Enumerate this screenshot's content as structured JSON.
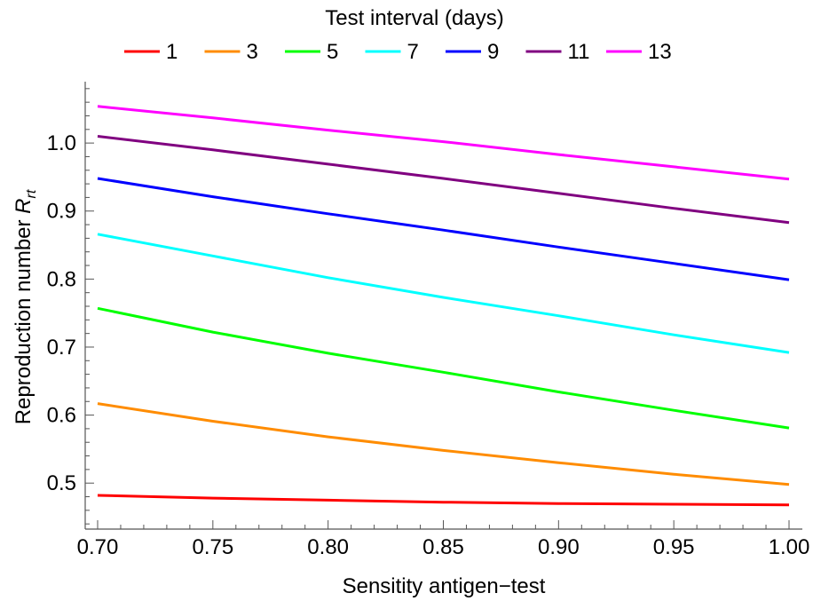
{
  "chart_data": {
    "type": "line",
    "title": "",
    "xlabel": "Sensitity antigen−test",
    "ylabel_main": "Reproduction number ",
    "ylabel_symbol": "R",
    "ylabel_subscript": "rt",
    "legend": {
      "title": "Test interval (days)",
      "placement": "top-center"
    },
    "xlim": [
      0.7,
      1.0
    ],
    "ylim": [
      0.435,
      1.085
    ],
    "x_ticks": [
      0.7,
      0.75,
      0.8,
      0.85,
      0.9,
      0.95,
      1.0
    ],
    "x_tick_labels": [
      "0.70",
      "0.75",
      "0.80",
      "0.85",
      "0.90",
      "0.95",
      "1.00"
    ],
    "y_ticks": [
      0.5,
      0.6,
      0.7,
      0.8,
      0.9,
      1.0
    ],
    "y_tick_labels": [
      "0.5",
      "0.6",
      "0.7",
      "0.8",
      "0.9",
      "1.0"
    ],
    "grid": false,
    "x": [
      0.7,
      0.75,
      0.8,
      0.85,
      0.9,
      0.95,
      1.0
    ],
    "series": [
      {
        "name": "1",
        "color": "#ff0000",
        "values": [
          0.482,
          0.478,
          0.475,
          0.472,
          0.47,
          0.469,
          0.468
        ]
      },
      {
        "name": "3",
        "color": "#ff8c00",
        "values": [
          0.617,
          0.591,
          0.568,
          0.548,
          0.53,
          0.513,
          0.498
        ]
      },
      {
        "name": "5",
        "color": "#00ff00",
        "values": [
          0.757,
          0.722,
          0.691,
          0.663,
          0.634,
          0.607,
          0.581
        ]
      },
      {
        "name": "7",
        "color": "#00ffff",
        "values": [
          0.866,
          0.834,
          0.802,
          0.773,
          0.746,
          0.718,
          0.692
        ]
      },
      {
        "name": "9",
        "color": "#0000ff",
        "values": [
          0.948,
          0.921,
          0.896,
          0.872,
          0.847,
          0.823,
          0.799
        ]
      },
      {
        "name": "11",
        "color": "#800080",
        "values": [
          1.01,
          0.99,
          0.969,
          0.948,
          0.926,
          0.904,
          0.883
        ]
      },
      {
        "name": "13",
        "color": "#ff00ff",
        "values": [
          1.054,
          1.037,
          1.019,
          1.002,
          0.983,
          0.965,
          0.947
        ]
      }
    ]
  }
}
